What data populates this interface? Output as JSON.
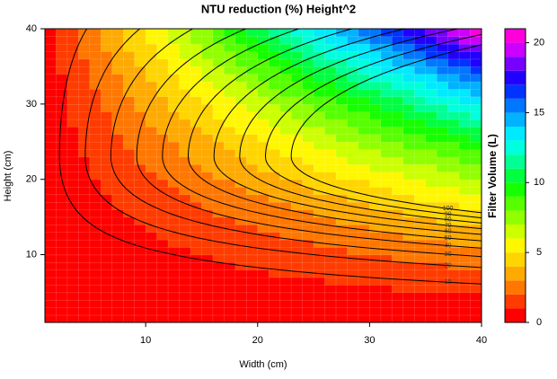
{
  "chart_data": {
    "type": "filled-contour",
    "title": "NTU reduction (%) Height^2",
    "x_label": "Width (cm)",
    "y_label": "Height (cm)",
    "colorbar_label": "Filter Volume (L)",
    "xlim": [
      1,
      40
    ],
    "ylim": [
      1,
      40
    ],
    "xticks": [
      10,
      20,
      30,
      40
    ],
    "yticks": [
      10,
      20,
      30,
      40
    ],
    "x": [
      0,
      5,
      10,
      15,
      20,
      25,
      30,
      35,
      40
    ],
    "y": [
      0,
      5,
      10,
      15,
      20,
      25,
      30,
      35,
      40
    ],
    "z": [
      [
        0,
        0,
        0,
        0,
        0,
        0,
        0,
        0,
        0
      ],
      [
        0,
        0.14,
        0.27,
        0.41,
        0.55,
        0.69,
        0.82,
        0.96,
        1.1
      ],
      [
        0,
        0.33,
        0.66,
        0.99,
        1.32,
        1.64,
        1.97,
        2.3,
        2.63
      ],
      [
        0,
        0.58,
        1.15,
        1.73,
        2.3,
        2.88,
        3.45,
        4.03,
        4.61
      ],
      [
        0,
        0.88,
        1.75,
        2.63,
        3.51,
        4.39,
        5.26,
        6.14,
        7.02
      ],
      [
        0,
        1.23,
        2.47,
        3.7,
        4.93,
        6.17,
        7.4,
        8.63,
        9.87
      ],
      [
        0,
        1.64,
        3.29,
        4.93,
        6.58,
        8.22,
        9.87,
        11.51,
        13.16
      ],
      [
        0,
        2.11,
        4.22,
        6.33,
        8.44,
        10.55,
        12.66,
        14.78,
        16.89
      ],
      [
        0,
        2.63,
        5.26,
        7.89,
        10.53,
        13.16,
        15.79,
        18.42,
        21.05
      ]
    ],
    "zlim": [
      0,
      21
    ],
    "zticks": [
      0,
      5,
      10,
      15,
      20
    ],
    "colors": [
      "hsl(0,100%,50%)",
      "hsl(14,100%,50%)",
      "hsl(28,100%,50%)",
      "hsl(40,100%,50%)",
      "hsl(50,100%,50%)",
      "hsl(58,100%,50%)",
      "hsl(72,100%,50%)",
      "hsl(86,100%,50%)",
      "hsl(100,100%,50%)",
      "hsl(115,100%,50%)",
      "hsl(135,100%,50%)",
      "hsl(155,100%,50%)",
      "hsl(172,100%,50%)",
      "hsl(185,100%,50%)",
      "hsl(198,100%,50%)",
      "hsl(212,100%,50%)",
      "hsl(228,100%,50%)",
      "hsl(248,100%,50%)",
      "hsl(268,100%,50%)",
      "hsl(288,100%,50%)",
      "hsl(308,100%,50%)"
    ],
    "contours": {
      "levels": [
        10,
        20,
        30,
        40,
        50,
        60,
        70,
        80,
        90,
        100
      ],
      "color": "#000000"
    }
  }
}
